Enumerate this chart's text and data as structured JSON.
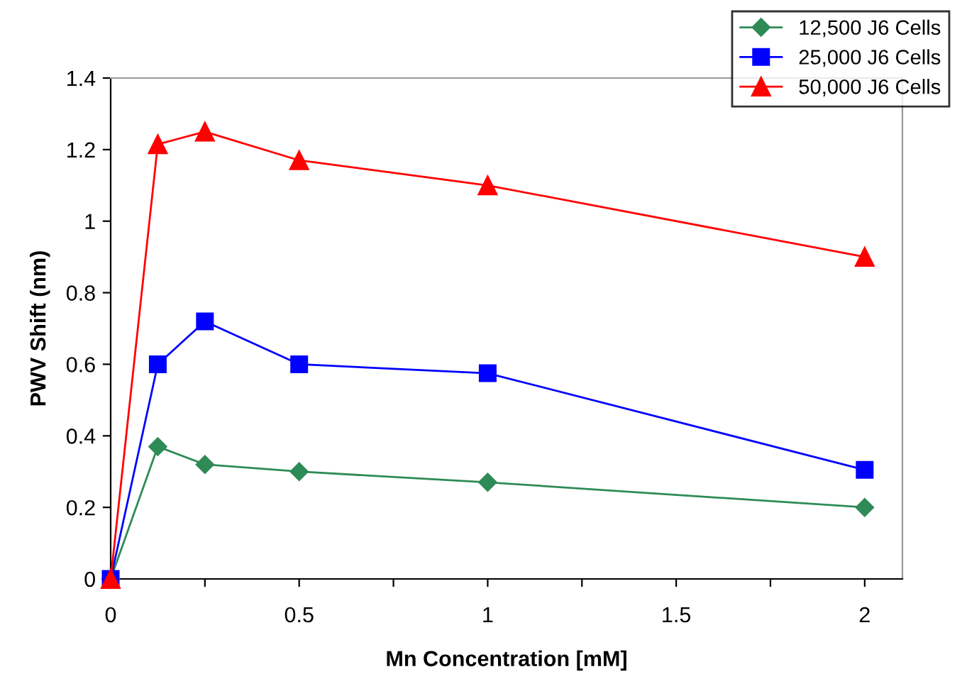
{
  "chart_data": {
    "type": "line",
    "xlabel": "Mn Concentration [mM]",
    "ylabel": "PWV Shift (nm)",
    "x": [
      0,
      0.125,
      0.25,
      0.5,
      1,
      2
    ],
    "series": [
      {
        "name": "12,500 J6 Cells",
        "color": "#2e8b57",
        "marker": "diamond",
        "values": [
          0,
          0.37,
          0.32,
          0.3,
          0.27,
          0.2
        ]
      },
      {
        "name": "25,000 J6 Cells",
        "color": "#0000ff",
        "marker": "square",
        "values": [
          0,
          0.6,
          0.72,
          0.6,
          0.575,
          0.305
        ]
      },
      {
        "name": "50,000 J6 Cells",
        "color": "#ff0000",
        "marker": "triangle",
        "values": [
          0,
          1.215,
          1.25,
          1.17,
          1.1,
          0.9
        ]
      }
    ],
    "xlim": [
      0,
      2.1
    ],
    "xticks": [
      0,
      {
        "value": 0.25,
        "label": null
      },
      0.5,
      {
        "value": 0.75,
        "label": null
      },
      1,
      {
        "value": 1.25,
        "label": null
      },
      1.5,
      {
        "value": 1.75,
        "label": null
      },
      2
    ],
    "ylim": [
      0,
      1.4
    ],
    "yticks": [
      0,
      0.2,
      0.4,
      0.6,
      0.8,
      1,
      1.2,
      1.4
    ],
    "grid": false,
    "legend": "top right",
    "line_style": "solid"
  }
}
